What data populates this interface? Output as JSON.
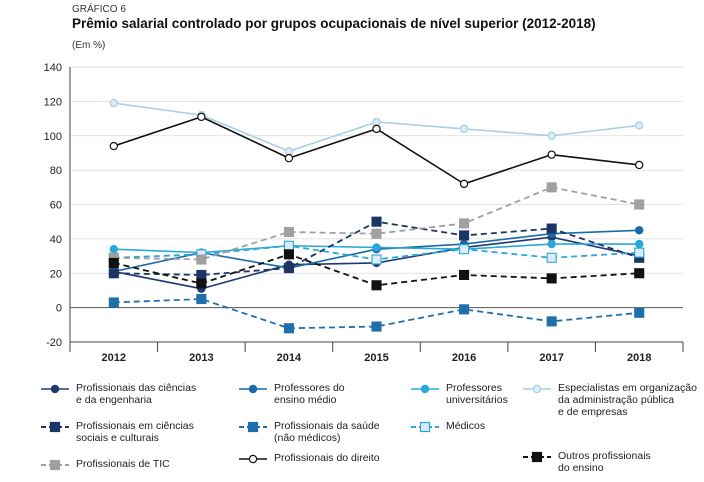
{
  "header": {
    "kicker": "GRÁFICO 6",
    "title": "Prêmio salarial controlado por grupos ocupacionais de nível superior (2012-2018)",
    "unit": "(Em %)"
  },
  "colors": {
    "navy": "#1f3a73",
    "blue": "#1a6aa8",
    "cyan": "#2aa8d8",
    "lightblue": "#a8cfe6",
    "darknavy": "#1c3566",
    "midblue": "#1f6fad",
    "gray": "#a0a0a0",
    "black": "#111111",
    "grid": "#d9d9d9"
  },
  "chart_data": {
    "type": "line",
    "title": "Prêmio salarial controlado por grupos ocupacionais de nível superior (2012-2018)",
    "ylabel": "(Em %)",
    "xlabel": "",
    "categories": [
      "2012",
      "2013",
      "2014",
      "2015",
      "2016",
      "2017",
      "2018"
    ],
    "ylim": [
      -20,
      140
    ],
    "yticks": [
      "-20",
      "0",
      "20",
      "40",
      "60",
      "80",
      "100",
      "120",
      "140"
    ],
    "grid": true,
    "series": [
      {
        "name": "Profissionais das ciências\ne da engenharia",
        "values": [
          21,
          11,
          25,
          26,
          35,
          41,
          30
        ],
        "color": "#1f3a73",
        "dash": "solid",
        "marker": "circle",
        "fill": "filled"
      },
      {
        "name": "Professores do\nensino médio",
        "values": [
          21,
          32,
          23,
          34,
          37,
          43,
          45
        ],
        "color": "#1a6aa8",
        "dash": "solid",
        "marker": "circle",
        "fill": "filled"
      },
      {
        "name": "Professores\nuniversitários",
        "values": [
          34,
          32,
          36,
          35,
          34,
          37,
          37
        ],
        "color": "#2aa8d8",
        "dash": "solid",
        "marker": "circle",
        "fill": "filled"
      },
      {
        "name": "Especialistas em organização\nda administração pública\ne de empresas",
        "values": [
          119,
          112,
          91,
          108,
          104,
          100,
          106
        ],
        "color": "#a8cfe6",
        "dash": "solid",
        "marker": "circle",
        "fill": "light"
      },
      {
        "name": "Profissionais em ciências\nsociais e culturais",
        "values": [
          20,
          19,
          23,
          50,
          42,
          46,
          29
        ],
        "color": "#1c3566",
        "dash": "dashed",
        "marker": "square",
        "fill": "filled"
      },
      {
        "name": "Profissionais da saúde\n(não médicos)",
        "values": [
          3,
          5,
          -12,
          -11,
          -1,
          -8,
          -3
        ],
        "color": "#1f6fad",
        "dash": "dashed",
        "marker": "square",
        "fill": "filled"
      },
      {
        "name": "Médicos",
        "values": [
          29,
          31,
          36,
          28,
          34,
          29,
          32
        ],
        "color": "#2aa8d8",
        "dash": "dashed",
        "marker": "square",
        "fill": "light"
      },
      {
        "name": "Profissionais de TIC",
        "values": [
          29,
          28,
          44,
          43,
          49,
          70,
          60
        ],
        "color": "#a0a0a0",
        "dash": "dashed",
        "marker": "square",
        "fill": "filled"
      },
      {
        "name": "Profissionais do direito",
        "values": [
          94,
          111,
          87,
          104,
          72,
          89,
          83
        ],
        "color": "#111111",
        "dash": "solid",
        "marker": "circle",
        "fill": "white"
      },
      {
        "name": "Outros profissionais\ndo ensino",
        "values": [
          26,
          14,
          31,
          13,
          19,
          17,
          20
        ],
        "color": "#111111",
        "dash": "dashed",
        "marker": "square",
        "fill": "filled"
      }
    ]
  }
}
